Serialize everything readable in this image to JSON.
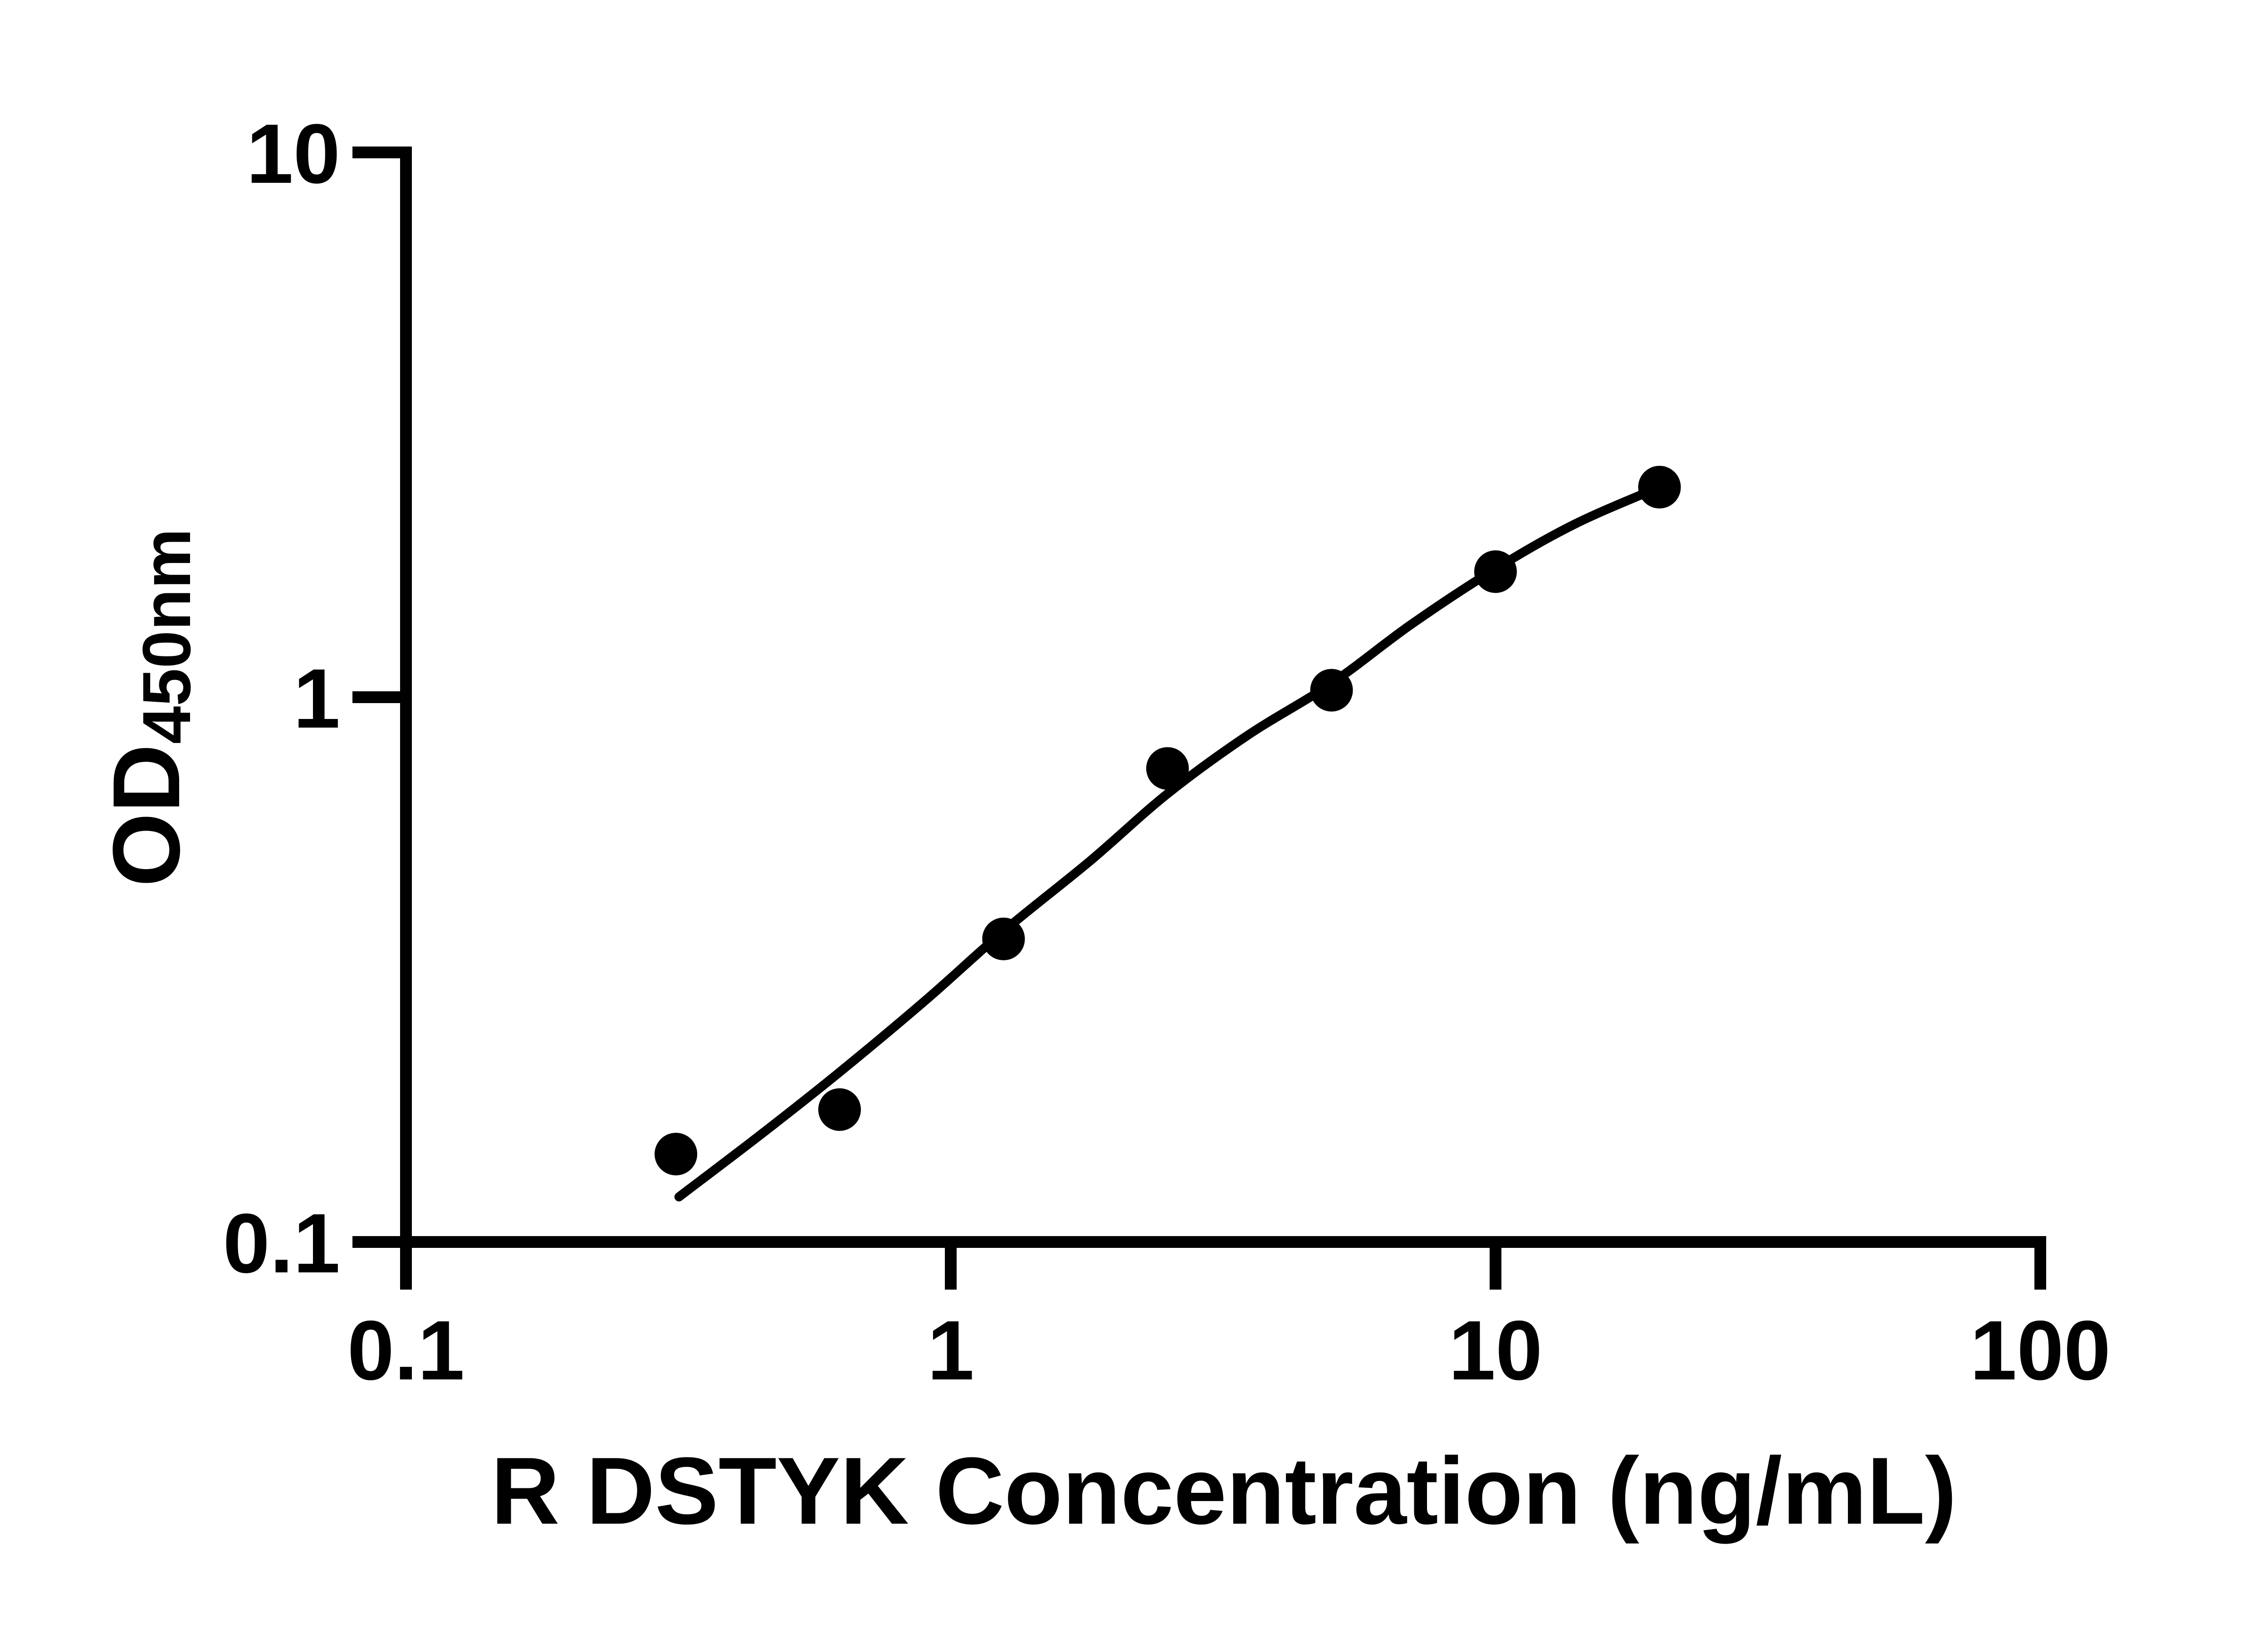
{
  "figure": {
    "description": "ELISA standard curve, log-log scatter plot with fitted curve",
    "background_color": "#ffffff",
    "ink_color": "#000000"
  },
  "x_axis": {
    "label": "R DSTYK Concentration (ng/mL)",
    "scale": "log10",
    "range": [
      0.1,
      100
    ],
    "tick_labels": [
      "0.1",
      "1",
      "10",
      "100"
    ],
    "tick_values": [
      0.1,
      1,
      10,
      100
    ]
  },
  "y_axis": {
    "label_main": "OD",
    "label_sub": "450nm",
    "scale": "log10",
    "range": [
      0.1,
      10
    ],
    "tick_labels": [
      "10",
      "1",
      "0.1"
    ],
    "tick_values": [
      10,
      1,
      0.1
    ]
  },
  "chart_data": {
    "type": "scatter",
    "title": "",
    "xlabel": "R DSTYK Concentration (ng/mL)",
    "ylabel": "OD450nm",
    "x_scale": "log",
    "y_scale": "log",
    "xlim": [
      0.1,
      100
    ],
    "ylim": [
      0.1,
      10
    ],
    "grid": false,
    "legend": false,
    "marker": {
      "shape": "circle",
      "color": "#000000"
    },
    "line_color": "#000000",
    "points": [
      {
        "x": 0.313,
        "y": 0.145
      },
      {
        "x": 0.625,
        "y": 0.175
      },
      {
        "x": 1.25,
        "y": 0.36
      },
      {
        "x": 2.5,
        "y": 0.74
      },
      {
        "x": 5,
        "y": 1.03
      },
      {
        "x": 10,
        "y": 1.7
      },
      {
        "x": 20,
        "y": 2.43
      }
    ],
    "fit_curve": {
      "x": [
        0.317,
        0.45,
        0.625,
        0.9,
        1.25,
        1.8,
        2.5,
        3.5,
        5,
        7,
        10,
        14,
        20
      ],
      "y": [
        0.121,
        0.158,
        0.205,
        0.278,
        0.372,
        0.5,
        0.665,
        0.85,
        1.06,
        1.36,
        1.72,
        2.08,
        2.43
      ]
    }
  }
}
